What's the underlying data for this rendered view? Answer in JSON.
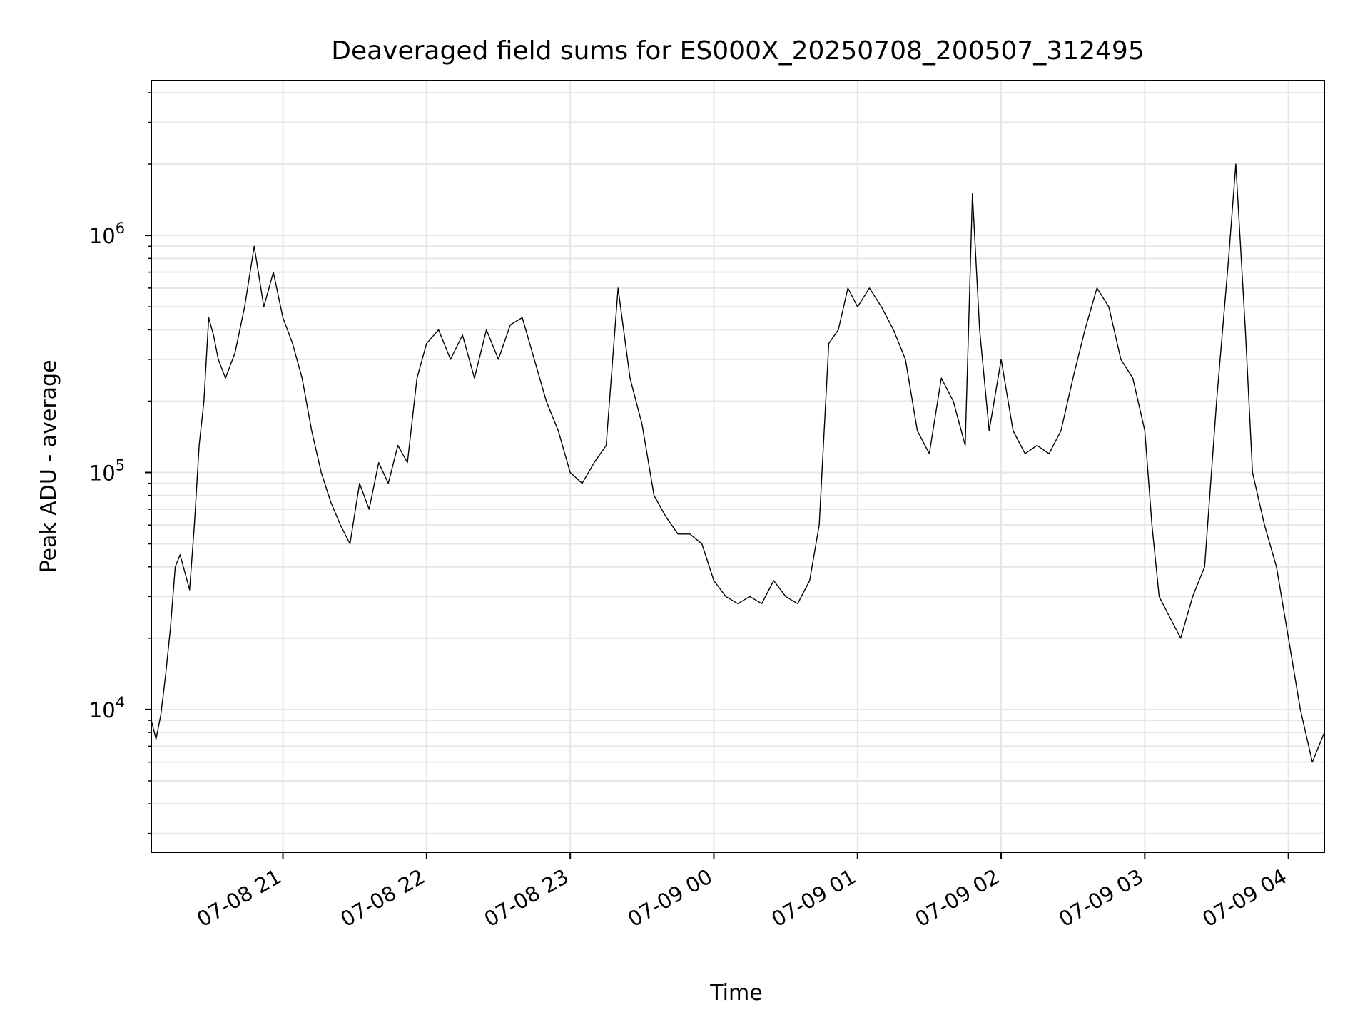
{
  "chart_data": {
    "type": "line",
    "title": "Deaveraged field sums for ES000X_20250708_200507_312495",
    "xlabel": "Time",
    "ylabel": "Peak ADU - average",
    "yscale": "log",
    "ylim": [
      2500,
      4500000
    ],
    "xlim": [
      "2025-07-08 20:05",
      "2025-07-09 04:15"
    ],
    "grid": true,
    "line_color": "#000000",
    "x_ticks": [
      {
        "t": "2025-07-08 21:00",
        "label": "07-08 21"
      },
      {
        "t": "2025-07-08 22:00",
        "label": "07-08 22"
      },
      {
        "t": "2025-07-08 23:00",
        "label": "07-08 23"
      },
      {
        "t": "2025-07-09 00:00",
        "label": "07-09 00"
      },
      {
        "t": "2025-07-09 01:00",
        "label": "07-09 01"
      },
      {
        "t": "2025-07-09 02:00",
        "label": "07-09 02"
      },
      {
        "t": "2025-07-09 03:00",
        "label": "07-09 03"
      },
      {
        "t": "2025-07-09 04:00",
        "label": "07-09 04"
      }
    ],
    "y_ticks": [
      {
        "v": 10000,
        "base": "10",
        "exp": "4"
      },
      {
        "v": 100000,
        "base": "10",
        "exp": "5"
      },
      {
        "v": 1000000,
        "base": "10",
        "exp": "6"
      }
    ],
    "series": [
      {
        "points": [
          [
            "2025-07-08 20:05",
            9000
          ],
          [
            "2025-07-08 20:07",
            7500
          ],
          [
            "2025-07-08 20:09",
            9500
          ],
          [
            "2025-07-08 20:11",
            14000
          ],
          [
            "2025-07-08 20:13",
            22000
          ],
          [
            "2025-07-08 20:15",
            40000
          ],
          [
            "2025-07-08 20:17",
            45000
          ],
          [
            "2025-07-08 20:19",
            38000
          ],
          [
            "2025-07-08 20:21",
            32000
          ],
          [
            "2025-07-08 20:23",
            60000
          ],
          [
            "2025-07-08 20:25",
            130000
          ],
          [
            "2025-07-08 20:27",
            200000
          ],
          [
            "2025-07-08 20:29",
            450000
          ],
          [
            "2025-07-08 20:31",
            380000
          ],
          [
            "2025-07-08 20:33",
            300000
          ],
          [
            "2025-07-08 20:36",
            250000
          ],
          [
            "2025-07-08 20:40",
            320000
          ],
          [
            "2025-07-08 20:44",
            500000
          ],
          [
            "2025-07-08 20:48",
            900000
          ],
          [
            "2025-07-08 20:52",
            500000
          ],
          [
            "2025-07-08 20:56",
            700000
          ],
          [
            "2025-07-08 21:00",
            450000
          ],
          [
            "2025-07-08 21:04",
            350000
          ],
          [
            "2025-07-08 21:08",
            250000
          ],
          [
            "2025-07-08 21:12",
            150000
          ],
          [
            "2025-07-08 21:16",
            100000
          ],
          [
            "2025-07-08 21:20",
            75000
          ],
          [
            "2025-07-08 21:24",
            60000
          ],
          [
            "2025-07-08 21:28",
            50000
          ],
          [
            "2025-07-08 21:32",
            90000
          ],
          [
            "2025-07-08 21:36",
            70000
          ],
          [
            "2025-07-08 21:40",
            110000
          ],
          [
            "2025-07-08 21:44",
            90000
          ],
          [
            "2025-07-08 21:48",
            130000
          ],
          [
            "2025-07-08 21:52",
            110000
          ],
          [
            "2025-07-08 21:56",
            250000
          ],
          [
            "2025-07-08 22:00",
            350000
          ],
          [
            "2025-07-08 22:05",
            400000
          ],
          [
            "2025-07-08 22:10",
            300000
          ],
          [
            "2025-07-08 22:15",
            380000
          ],
          [
            "2025-07-08 22:20",
            250000
          ],
          [
            "2025-07-08 22:25",
            400000
          ],
          [
            "2025-07-08 22:30",
            300000
          ],
          [
            "2025-07-08 22:35",
            420000
          ],
          [
            "2025-07-08 22:40",
            450000
          ],
          [
            "2025-07-08 22:45",
            300000
          ],
          [
            "2025-07-08 22:50",
            200000
          ],
          [
            "2025-07-08 22:55",
            150000
          ],
          [
            "2025-07-08 23:00",
            100000
          ],
          [
            "2025-07-08 23:05",
            90000
          ],
          [
            "2025-07-08 23:10",
            110000
          ],
          [
            "2025-07-08 23:15",
            130000
          ],
          [
            "2025-07-08 23:20",
            600000
          ],
          [
            "2025-07-08 23:25",
            250000
          ],
          [
            "2025-07-08 23:30",
            160000
          ],
          [
            "2025-07-08 23:35",
            80000
          ],
          [
            "2025-07-08 23:40",
            65000
          ],
          [
            "2025-07-08 23:45",
            55000
          ],
          [
            "2025-07-08 23:50",
            55000
          ],
          [
            "2025-07-08 23:55",
            50000
          ],
          [
            "2025-07-09 00:00",
            35000
          ],
          [
            "2025-07-09 00:05",
            30000
          ],
          [
            "2025-07-09 00:10",
            28000
          ],
          [
            "2025-07-09 00:15",
            30000
          ],
          [
            "2025-07-09 00:20",
            28000
          ],
          [
            "2025-07-09 00:25",
            35000
          ],
          [
            "2025-07-09 00:30",
            30000
          ],
          [
            "2025-07-09 00:35",
            28000
          ],
          [
            "2025-07-09 00:40",
            35000
          ],
          [
            "2025-07-09 00:44",
            60000
          ],
          [
            "2025-07-09 00:48",
            350000
          ],
          [
            "2025-07-09 00:52",
            400000
          ],
          [
            "2025-07-09 00:56",
            600000
          ],
          [
            "2025-07-09 01:00",
            500000
          ],
          [
            "2025-07-09 01:05",
            600000
          ],
          [
            "2025-07-09 01:10",
            500000
          ],
          [
            "2025-07-09 01:15",
            400000
          ],
          [
            "2025-07-09 01:20",
            300000
          ],
          [
            "2025-07-09 01:25",
            150000
          ],
          [
            "2025-07-09 01:30",
            120000
          ],
          [
            "2025-07-09 01:35",
            250000
          ],
          [
            "2025-07-09 01:40",
            200000
          ],
          [
            "2025-07-09 01:45",
            130000
          ],
          [
            "2025-07-09 01:48",
            1500000
          ],
          [
            "2025-07-09 01:51",
            400000
          ],
          [
            "2025-07-09 01:55",
            150000
          ],
          [
            "2025-07-09 02:00",
            300000
          ],
          [
            "2025-07-09 02:05",
            150000
          ],
          [
            "2025-07-09 02:10",
            120000
          ],
          [
            "2025-07-09 02:15",
            130000
          ],
          [
            "2025-07-09 02:20",
            120000
          ],
          [
            "2025-07-09 02:25",
            150000
          ],
          [
            "2025-07-09 02:30",
            250000
          ],
          [
            "2025-07-09 02:35",
            400000
          ],
          [
            "2025-07-09 02:40",
            600000
          ],
          [
            "2025-07-09 02:45",
            500000
          ],
          [
            "2025-07-09 02:50",
            300000
          ],
          [
            "2025-07-09 02:55",
            250000
          ],
          [
            "2025-07-09 03:00",
            150000
          ],
          [
            "2025-07-09 03:03",
            60000
          ],
          [
            "2025-07-09 03:06",
            30000
          ],
          [
            "2025-07-09 03:10",
            25000
          ],
          [
            "2025-07-09 03:15",
            20000
          ],
          [
            "2025-07-09 03:20",
            30000
          ],
          [
            "2025-07-09 03:25",
            40000
          ],
          [
            "2025-07-09 03:30",
            200000
          ],
          [
            "2025-07-09 03:35",
            800000
          ],
          [
            "2025-07-09 03:38",
            2000000
          ],
          [
            "2025-07-09 03:42",
            400000
          ],
          [
            "2025-07-09 03:45",
            100000
          ],
          [
            "2025-07-09 03:50",
            60000
          ],
          [
            "2025-07-09 03:55",
            40000
          ],
          [
            "2025-07-09 04:00",
            20000
          ],
          [
            "2025-07-09 04:05",
            10000
          ],
          [
            "2025-07-09 04:10",
            6000
          ],
          [
            "2025-07-09 04:15",
            8000
          ]
        ]
      }
    ]
  }
}
